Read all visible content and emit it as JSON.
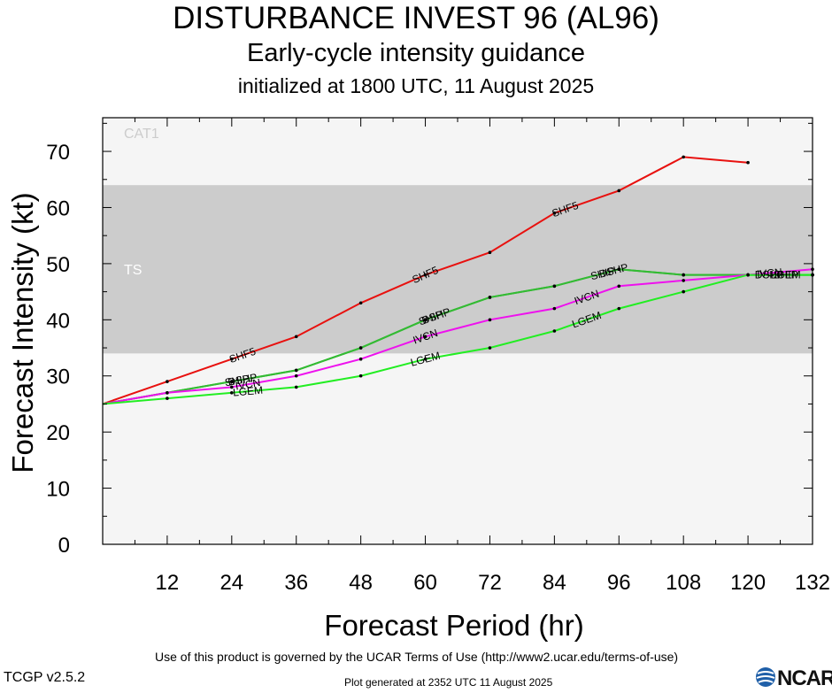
{
  "header": {
    "title": "DISTURBANCE INVEST 96 (AL96)",
    "subtitle": "Early-cycle intensity guidance",
    "init": "initialized at 1800 UTC, 11 August 2025"
  },
  "footer": {
    "terms": "Use of this product is governed by the UCAR Terms of Use (http://www2.ucar.edu/terms-of-use)",
    "version": "TCGP v2.5.2",
    "generated": "Plot generated at 2352 UTC   11 August 2025",
    "logo_text": "NCAR"
  },
  "colors": {
    "cat1_band": "#f5f5f5",
    "ts_band": "#cccccc",
    "SHF5": "#e8110f",
    "DSHP": "#33bb33",
    "SHIP": "#33bb33",
    "IVCN": "#ee11ee",
    "LGEM": "#22ee22"
  },
  "chart_data": {
    "type": "line",
    "title": "DISTURBANCE INVEST 96 (AL96)",
    "xlabel": "Forecast Period (hr)",
    "ylabel": "Forecast Intensity (kt)",
    "xlim": [
      0,
      132
    ],
    "ylim": [
      0,
      76
    ],
    "xticks": [
      12,
      24,
      36,
      48,
      60,
      72,
      84,
      96,
      108,
      120,
      132
    ],
    "yticks": [
      0,
      10,
      20,
      30,
      40,
      50,
      60,
      70
    ],
    "bands": [
      {
        "label": "TS",
        "from": 34,
        "to": 64,
        "color": "#cccccc"
      },
      {
        "label": "CAT1",
        "from": 64,
        "to": 76,
        "color": "#f5f5f5"
      }
    ],
    "series": [
      {
        "name": "SHF5",
        "color": "#e8110f",
        "x": [
          0,
          12,
          24,
          36,
          48,
          60,
          72,
          84,
          96,
          108,
          120
        ],
        "y": [
          25,
          29,
          33,
          37,
          43,
          48,
          52,
          59,
          63,
          69,
          68
        ],
        "label_x": [
          26,
          60,
          86
        ]
      },
      {
        "name": "DSHP",
        "color": "#33bb33",
        "x": [
          0,
          12,
          24,
          36,
          48,
          60,
          72,
          84,
          96,
          108,
          120,
          132
        ],
        "y": [
          25,
          27,
          29,
          31,
          35,
          40,
          44,
          46,
          49,
          48,
          48,
          48
        ],
        "label_x": [
          26,
          62,
          95,
          124
        ]
      },
      {
        "name": "SHIP",
        "color": "#33bb33",
        "x": [
          0,
          12,
          24,
          36,
          48,
          60,
          72,
          84,
          96,
          108,
          120,
          132
        ],
        "y": [
          25,
          27,
          29,
          31,
          35,
          40,
          44,
          46,
          49,
          48,
          48,
          48
        ],
        "label_x": [
          25,
          61,
          93,
          127
        ]
      },
      {
        "name": "IVCN",
        "color": "#ee11ee",
        "x": [
          0,
          12,
          24,
          36,
          48,
          60,
          72,
          84,
          96,
          108,
          120,
          132
        ],
        "y": [
          25,
          27,
          28,
          30,
          33,
          37,
          40,
          42,
          46,
          47,
          48,
          49
        ],
        "label_x": [
          27,
          60,
          90,
          124
        ]
      },
      {
        "name": "LGEM",
        "color": "#22ee22",
        "x": [
          0,
          12,
          24,
          36,
          48,
          60,
          72,
          84,
          96,
          108,
          120,
          132
        ],
        "y": [
          25,
          26,
          27,
          28,
          30,
          33,
          35,
          38,
          42,
          45,
          48,
          48
        ],
        "label_x": [
          27,
          60,
          90,
          127
        ]
      }
    ]
  }
}
